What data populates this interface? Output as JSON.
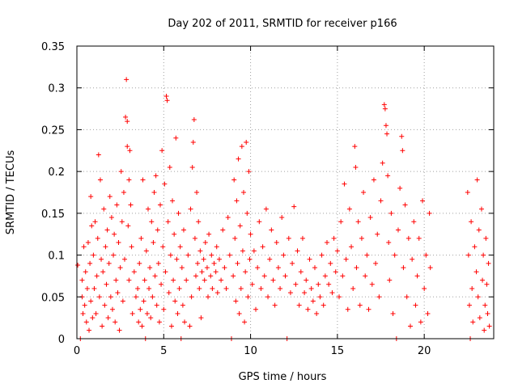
{
  "chart_data": {
    "type": "scatter",
    "title": "Day 202 of 2011, SRMTID for receiver p166",
    "xlabel": "GPS time / hours",
    "ylabel": "SRMTID / TECUs",
    "xlim": [
      0,
      24
    ],
    "ylim": [
      0,
      0.35
    ],
    "grid": true,
    "x_ticks": [
      0,
      5,
      10,
      15,
      20
    ],
    "x_tick_labels": [
      "0",
      "5",
      "10",
      "15",
      "20"
    ],
    "y_ticks": [
      0,
      0.05,
      0.1,
      0.15,
      0.2,
      0.25,
      0.3,
      0.35
    ],
    "y_tick_labels": [
      "0",
      "0.05",
      "0.1",
      "0.15",
      "0.2",
      "0.25",
      "0.3",
      "0.35"
    ],
    "marker": "+",
    "color": "#ff0000",
    "series": [
      {
        "name": "SRMTID",
        "points": [
          [
            0.05,
            0.088
          ],
          [
            0.2,
            0.0
          ],
          [
            0.3,
            0.05
          ],
          [
            0.3,
            0.07
          ],
          [
            0.35,
            0.03
          ],
          [
            0.4,
            0.11
          ],
          [
            0.45,
            0.04
          ],
          [
            0.5,
            0.08
          ],
          [
            0.55,
            0.02
          ],
          [
            0.6,
            0.06
          ],
          [
            0.65,
            0.115
          ],
          [
            0.7,
            0.01
          ],
          [
            0.75,
            0.09
          ],
          [
            0.8,
            0.17
          ],
          [
            0.8,
            0.045
          ],
          [
            0.85,
            0.135
          ],
          [
            0.9,
            0.025
          ],
          [
            0.95,
            0.1
          ],
          [
            1.0,
            0.06
          ],
          [
            1.05,
            0.14
          ],
          [
            1.1,
            0.03
          ],
          [
            1.15,
            0.075
          ],
          [
            1.2,
            0.12
          ],
          [
            1.25,
            0.22
          ],
          [
            1.3,
            0.05
          ],
          [
            1.35,
            0.19
          ],
          [
            1.4,
            0.095
          ],
          [
            1.45,
            0.015
          ],
          [
            1.5,
            0.08
          ],
          [
            1.55,
            0.155
          ],
          [
            1.6,
            0.04
          ],
          [
            1.65,
            0.11
          ],
          [
            1.7,
            0.065
          ],
          [
            1.75,
            0.13
          ],
          [
            1.8,
            0.025
          ],
          [
            1.85,
            0.09
          ],
          [
            1.9,
            0.17
          ],
          [
            1.95,
            0.05
          ],
          [
            2.0,
            0.145
          ],
          [
            2.05,
            0.035
          ],
          [
            2.1,
            0.1
          ],
          [
            2.15,
            0.125
          ],
          [
            2.2,
            0.02
          ],
          [
            2.25,
            0.07
          ],
          [
            2.3,
            0.16
          ],
          [
            2.35,
            0.055
          ],
          [
            2.4,
            0.115
          ],
          [
            2.45,
            0.01
          ],
          [
            2.5,
            0.085
          ],
          [
            2.55,
            0.2
          ],
          [
            2.6,
            0.14
          ],
          [
            2.65,
            0.045
          ],
          [
            2.7,
            0.175
          ],
          [
            2.75,
            0.095
          ],
          [
            2.8,
            0.265
          ],
          [
            2.85,
            0.31
          ],
          [
            2.9,
            0.23
          ],
          [
            2.9,
            0.26
          ],
          [
            2.95,
            0.135
          ],
          [
            3.0,
            0.19
          ],
          [
            3.0,
            0.07
          ],
          [
            3.05,
            0.225
          ],
          [
            3.1,
            0.16
          ],
          [
            3.15,
            0.11
          ],
          [
            3.2,
            0.03
          ],
          [
            3.3,
            0.08
          ],
          [
            3.4,
            0.05
          ],
          [
            3.5,
            0.06
          ],
          [
            3.55,
            0.02
          ],
          [
            3.6,
            0.09
          ],
          [
            3.65,
            0.035
          ],
          [
            3.7,
            0.12
          ],
          [
            3.75,
            0.015
          ],
          [
            3.8,
            0.19
          ],
          [
            3.85,
            0.045
          ],
          [
            3.9,
            0.07
          ],
          [
            3.95,
            0.0
          ],
          [
            4.0,
            0.105
          ],
          [
            4.05,
            0.03
          ],
          [
            4.1,
            0.155
          ],
          [
            4.15,
            0.06
          ],
          [
            4.2,
            0.085
          ],
          [
            4.25,
            0.025
          ],
          [
            4.3,
            0.14
          ],
          [
            4.35,
            0.05
          ],
          [
            4.4,
            0.115
          ],
          [
            4.45,
            0.175
          ],
          [
            4.5,
            0.075
          ],
          [
            4.55,
            0.195
          ],
          [
            4.6,
            0.04
          ],
          [
            4.65,
            0.13
          ],
          [
            4.7,
            0.09
          ],
          [
            4.75,
            0.02
          ],
          [
            4.8,
            0.16
          ],
          [
            4.85,
            0.065
          ],
          [
            4.9,
            0.225
          ],
          [
            4.95,
            0.11
          ],
          [
            5.0,
            0.035
          ],
          [
            5.05,
            0.185
          ],
          [
            5.1,
            0.08
          ],
          [
            5.15,
            0.29
          ],
          [
            5.2,
            0.285
          ],
          [
            5.25,
            0.14
          ],
          [
            5.3,
            0.055
          ],
          [
            5.35,
            0.205
          ],
          [
            5.4,
            0.1
          ],
          [
            5.45,
            0.015
          ],
          [
            5.5,
            0.165
          ],
          [
            5.55,
            0.07
          ],
          [
            5.6,
            0.125
          ],
          [
            5.65,
            0.045
          ],
          [
            5.7,
            0.24
          ],
          [
            5.75,
            0.095
          ],
          [
            5.8,
            0.03
          ],
          [
            5.85,
            0.15
          ],
          [
            5.9,
            0.06
          ],
          [
            5.95,
            0.11
          ],
          [
            6.0,
            0.0
          ],
          [
            6.05,
            0.085
          ],
          [
            6.1,
            0.04
          ],
          [
            6.15,
            0.13
          ],
          [
            6.2,
            0.02
          ],
          [
            6.3,
            0.07
          ],
          [
            6.4,
            0.1
          ],
          [
            6.5,
            0.015
          ],
          [
            6.55,
            0.155
          ],
          [
            6.6,
            0.05
          ],
          [
            6.65,
            0.205
          ],
          [
            6.7,
            0.235
          ],
          [
            6.75,
            0.262
          ],
          [
            6.8,
            0.12
          ],
          [
            6.85,
            0.075
          ],
          [
            6.9,
            0.175
          ],
          [
            6.95,
            0.09
          ],
          [
            7.0,
            0.14
          ],
          [
            7.05,
            0.06
          ],
          [
            7.1,
            0.105
          ],
          [
            7.15,
            0.025
          ],
          [
            7.2,
            0.08
          ],
          [
            7.3,
            0.095
          ],
          [
            7.35,
            0.07
          ],
          [
            7.4,
            0.115
          ],
          [
            7.5,
            0.085
          ],
          [
            7.55,
            0.05
          ],
          [
            7.6,
            0.125
          ],
          [
            7.7,
            0.075
          ],
          [
            7.75,
            0.1
          ],
          [
            7.8,
            0.06
          ],
          [
            7.9,
            0.09
          ],
          [
            8.0,
            0.08
          ],
          [
            8.05,
            0.11
          ],
          [
            8.1,
            0.055
          ],
          [
            8.2,
            0.095
          ],
          [
            8.3,
            0.07
          ],
          [
            8.4,
            0.13
          ],
          [
            8.5,
            0.085
          ],
          [
            8.6,
            0.06
          ],
          [
            8.7,
            0.145
          ],
          [
            8.8,
            0.1
          ],
          [
            8.9,
            0.0
          ],
          [
            9.0,
            0.075
          ],
          [
            9.05,
            0.19
          ],
          [
            9.1,
            0.12
          ],
          [
            9.15,
            0.045
          ],
          [
            9.2,
            0.165
          ],
          [
            9.25,
            0.09
          ],
          [
            9.3,
            0.215
          ],
          [
            9.35,
            0.03
          ],
          [
            9.4,
            0.135
          ],
          [
            9.45,
            0.06
          ],
          [
            9.5,
            0.23
          ],
          [
            9.55,
            0.105
          ],
          [
            9.6,
            0.175
          ],
          [
            9.65,
            0.02
          ],
          [
            9.7,
            0.08
          ],
          [
            9.75,
            0.235
          ],
          [
            9.8,
            0.15
          ],
          [
            9.85,
            0.05
          ],
          [
            9.9,
            0.2
          ],
          [
            9.95,
            0.095
          ],
          [
            10.0,
            0.125
          ],
          [
            10.1,
            0.065
          ],
          [
            10.2,
            0.105
          ],
          [
            10.3,
            0.035
          ],
          [
            10.4,
            0.085
          ],
          [
            10.5,
            0.14
          ],
          [
            10.6,
            0.06
          ],
          [
            10.7,
            0.11
          ],
          [
            10.8,
            0.075
          ],
          [
            10.9,
            0.155
          ],
          [
            11.0,
            0.05
          ],
          [
            11.1,
            0.095
          ],
          [
            11.2,
            0.13
          ],
          [
            11.3,
            0.07
          ],
          [
            11.4,
            0.04
          ],
          [
            11.5,
            0.115
          ],
          [
            11.6,
            0.085
          ],
          [
            11.7,
            0.06
          ],
          [
            11.8,
            0.145
          ],
          [
            11.9,
            0.1
          ],
          [
            12.0,
            0.075
          ],
          [
            12.1,
            0.0
          ],
          [
            12.2,
            0.12
          ],
          [
            12.3,
            0.055
          ],
          [
            12.4,
            0.09
          ],
          [
            12.5,
            0.158
          ],
          [
            12.6,
            0.065
          ],
          [
            12.7,
            0.105
          ],
          [
            12.8,
            0.04
          ],
          [
            12.9,
            0.08
          ],
          [
            13.0,
            0.12
          ],
          [
            13.1,
            0.055
          ],
          [
            13.2,
            0.07
          ],
          [
            13.3,
            0.035
          ],
          [
            13.4,
            0.095
          ],
          [
            13.5,
            0.06
          ],
          [
            13.6,
            0.045
          ],
          [
            13.7,
            0.085
          ],
          [
            13.8,
            0.03
          ],
          [
            13.9,
            0.065
          ],
          [
            14.0,
            0.05
          ],
          [
            14.1,
            0.1
          ],
          [
            14.2,
            0.04
          ],
          [
            14.3,
            0.075
          ],
          [
            14.4,
            0.115
          ],
          [
            14.5,
            0.065
          ],
          [
            14.6,
            0.09
          ],
          [
            14.7,
            0.055
          ],
          [
            14.8,
            0.12
          ],
          [
            14.9,
            0.08
          ],
          [
            15.0,
            0.105
          ],
          [
            15.1,
            0.05
          ],
          [
            15.2,
            0.14
          ],
          [
            15.3,
            0.075
          ],
          [
            15.4,
            0.185
          ],
          [
            15.5,
            0.095
          ],
          [
            15.6,
            0.035
          ],
          [
            15.7,
            0.155
          ],
          [
            15.8,
            0.11
          ],
          [
            15.9,
            0.06
          ],
          [
            16.0,
            0.23
          ],
          [
            16.05,
            0.205
          ],
          [
            16.1,
            0.085
          ],
          [
            16.2,
            0.14
          ],
          [
            16.3,
            0.04
          ],
          [
            16.4,
            0.12
          ],
          [
            16.5,
            0.175
          ],
          [
            16.6,
            0.075
          ],
          [
            16.7,
            0.1
          ],
          [
            16.8,
            0.035
          ],
          [
            16.9,
            0.145
          ],
          [
            17.0,
            0.065
          ],
          [
            17.1,
            0.19
          ],
          [
            17.2,
            0.09
          ],
          [
            17.3,
            0.125
          ],
          [
            17.4,
            0.05
          ],
          [
            17.5,
            0.165
          ],
          [
            17.6,
            0.21
          ],
          [
            17.7,
            0.28
          ],
          [
            17.75,
            0.275
          ],
          [
            17.8,
            0.255
          ],
          [
            17.85,
            0.245
          ],
          [
            17.9,
            0.195
          ],
          [
            17.95,
            0.115
          ],
          [
            18.0,
            0.07
          ],
          [
            18.1,
            0.15
          ],
          [
            18.2,
            0.03
          ],
          [
            18.3,
            0.1
          ],
          [
            18.4,
            0.0
          ],
          [
            18.5,
            0.13
          ],
          [
            18.6,
            0.18
          ],
          [
            18.7,
            0.242
          ],
          [
            18.75,
            0.225
          ],
          [
            18.8,
            0.085
          ],
          [
            18.9,
            0.16
          ],
          [
            19.0,
            0.05
          ],
          [
            19.1,
            0.12
          ],
          [
            19.2,
            0.015
          ],
          [
            19.3,
            0.095
          ],
          [
            19.4,
            0.14
          ],
          [
            19.5,
            0.04
          ],
          [
            19.6,
            0.075
          ],
          [
            19.7,
            0.12
          ],
          [
            19.8,
            0.02
          ],
          [
            19.9,
            0.165
          ],
          [
            20.0,
            0.06
          ],
          [
            20.1,
            0.1
          ],
          [
            20.2,
            0.03
          ],
          [
            20.3,
            0.15
          ],
          [
            20.35,
            0.085
          ],
          [
            22.5,
            0.175
          ],
          [
            22.55,
            0.1
          ],
          [
            22.6,
            0.04
          ],
          [
            22.65,
            0.0
          ],
          [
            22.7,
            0.14
          ],
          [
            22.75,
            0.06
          ],
          [
            22.8,
            0.02
          ],
          [
            22.9,
            0.11
          ],
          [
            23.0,
            0.08
          ],
          [
            23.05,
            0.19
          ],
          [
            23.1,
            0.05
          ],
          [
            23.15,
            0.13
          ],
          [
            23.2,
            0.025
          ],
          [
            23.3,
            0.155
          ],
          [
            23.35,
            0.07
          ],
          [
            23.4,
            0.1
          ],
          [
            23.45,
            0.01
          ],
          [
            23.5,
            0.04
          ],
          [
            23.55,
            0.12
          ],
          [
            23.6,
            0.065
          ],
          [
            23.65,
            0.03
          ],
          [
            23.7,
            0.09
          ],
          [
            23.75,
            0.015
          ]
        ]
      }
    ]
  }
}
